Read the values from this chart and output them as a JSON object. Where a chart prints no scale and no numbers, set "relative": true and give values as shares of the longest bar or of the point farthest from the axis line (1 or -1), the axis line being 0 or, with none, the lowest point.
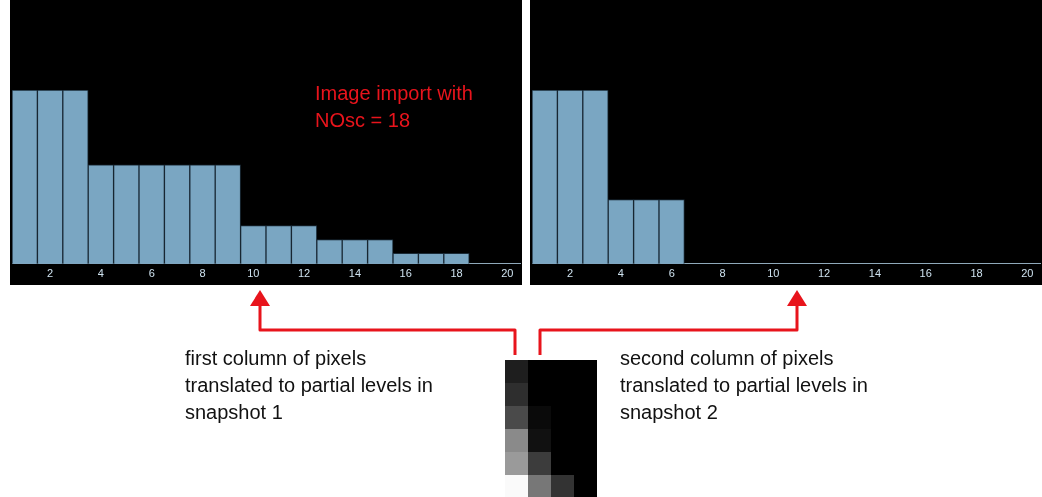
{
  "chart_data": [
    {
      "type": "bar",
      "relative": true,
      "categories": [
        null,
        "2",
        null,
        "4",
        null,
        "6",
        null,
        "8",
        null,
        "10",
        null,
        "12",
        null,
        "14",
        null,
        "16",
        null,
        "18",
        null,
        "20"
      ],
      "values": [
        1,
        1,
        1,
        0.57,
        0.57,
        0.57,
        0.57,
        0.57,
        0.57,
        0.22,
        0.22,
        0.22,
        0.14,
        0.14,
        0.14,
        0.06,
        0.06,
        0.06,
        0,
        0
      ],
      "color": "#7aa6c2",
      "annotations": [
        "Image import with NOsc = 18",
        "first column of pixels translated to partial levels in snapshot 1"
      ]
    },
    {
      "type": "bar",
      "relative": true,
      "categories": [
        null,
        "2",
        null,
        "4",
        null,
        "6",
        null,
        "8",
        null,
        "10",
        null,
        "12",
        null,
        "14",
        null,
        "16",
        null,
        "18",
        null,
        "20"
      ],
      "values": [
        1,
        1,
        1,
        0.37,
        0.37,
        0.37,
        0,
        0,
        0,
        0,
        0,
        0,
        0,
        0,
        0,
        0,
        0,
        0,
        0,
        0
      ],
      "color": "#7aa6c2",
      "annotations": [
        "second column of pixels translated to partial levels in snapshot 2"
      ]
    }
  ]
}
